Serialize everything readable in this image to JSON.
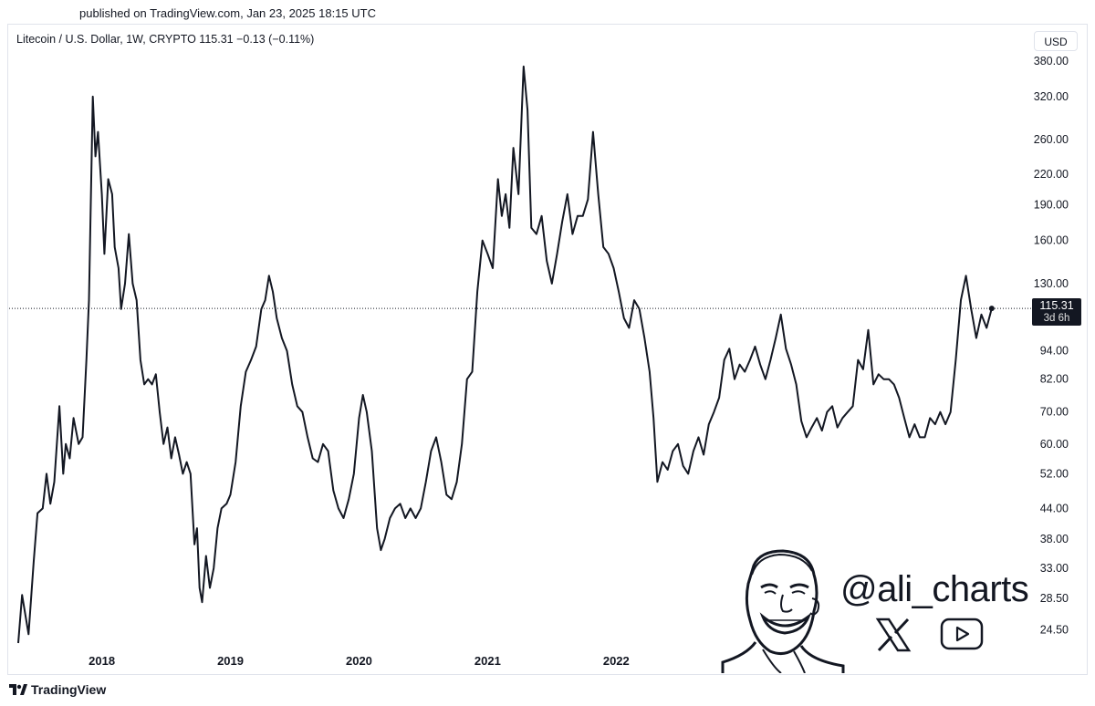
{
  "header": {
    "published": "published on TradingView.com, Jan 23, 2025 18:15 UTC"
  },
  "legend": {
    "symbol": "Litecoin / U.S. Dollar, 1W, CRYPTO  115.31  −0.13 (−0.11%)"
  },
  "currency_button": "USD",
  "last_price": {
    "value": "115.31",
    "countdown": "3d 6h"
  },
  "watermark": {
    "handle": "@ali_charts",
    "icons": [
      "x-logo-icon",
      "youtube-icon"
    ]
  },
  "footer": {
    "brand": "TradingView"
  },
  "colors": {
    "line": "#131722",
    "grid_dotted": "#131722",
    "badge_bg": "#131722"
  },
  "chart_data": {
    "type": "line",
    "title": "Litecoin / U.S. Dollar, 1W, CRYPTO",
    "y_scale": "log",
    "ylim": [
      22.5,
      395
    ],
    "xlim": [
      2017.35,
      2025.12
    ],
    "y_ticks": [
      24.5,
      28.5,
      33.0,
      38.0,
      44.0,
      52.0,
      60.0,
      70.0,
      82.0,
      94.0,
      130.0,
      160.0,
      190.0,
      220.0,
      260.0,
      320.0,
      380.0
    ],
    "y_tick_labels": [
      "24.50",
      "28.50",
      "33.00",
      "38.00",
      "44.00",
      "52.00",
      "60.00",
      "70.00",
      "82.00",
      "94.00",
      "130.00",
      "160.00",
      "190.00",
      "220.00",
      "260.00",
      "320.00",
      "380.00"
    ],
    "x_ticks": [
      2018,
      2019,
      2020,
      2021,
      2022
    ],
    "x_tick_labels": [
      "2018",
      "2019",
      "2020",
      "2021",
      "2022"
    ],
    "current_price_line": 115.31,
    "series": [
      {
        "points": [
          [
            2017.35,
            23.0
          ],
          [
            2017.38,
            29.0
          ],
          [
            2017.43,
            24.0
          ],
          [
            2017.47,
            34.0
          ],
          [
            2017.5,
            43.0
          ],
          [
            2017.54,
            44.0
          ],
          [
            2017.57,
            52.0
          ],
          [
            2017.6,
            45.0
          ],
          [
            2017.63,
            50.0
          ],
          [
            2017.67,
            72.0
          ],
          [
            2017.7,
            52.0
          ],
          [
            2017.72,
            60.0
          ],
          [
            2017.75,
            56.0
          ],
          [
            2017.78,
            68.0
          ],
          [
            2017.82,
            60.0
          ],
          [
            2017.85,
            62.0
          ],
          [
            2017.88,
            90.0
          ],
          [
            2017.9,
            120.0
          ],
          [
            2017.93,
            320.0
          ],
          [
            2017.95,
            240.0
          ],
          [
            2017.97,
            270.0
          ],
          [
            2018.0,
            200.0
          ],
          [
            2018.02,
            150.0
          ],
          [
            2018.05,
            215.0
          ],
          [
            2018.08,
            200.0
          ],
          [
            2018.1,
            155.0
          ],
          [
            2018.13,
            140.0
          ],
          [
            2018.15,
            115.0
          ],
          [
            2018.18,
            130.0
          ],
          [
            2018.21,
            165.0
          ],
          [
            2018.24,
            130.0
          ],
          [
            2018.27,
            120.0
          ],
          [
            2018.3,
            90.0
          ],
          [
            2018.33,
            80.0
          ],
          [
            2018.36,
            82.0
          ],
          [
            2018.39,
            80.0
          ],
          [
            2018.42,
            84.0
          ],
          [
            2018.45,
            70.0
          ],
          [
            2018.48,
            60.0
          ],
          [
            2018.51,
            65.0
          ],
          [
            2018.54,
            56.0
          ],
          [
            2018.57,
            62.0
          ],
          [
            2018.6,
            57.0
          ],
          [
            2018.63,
            52.0
          ],
          [
            2018.66,
            55.0
          ],
          [
            2018.69,
            52.0
          ],
          [
            2018.72,
            37.0
          ],
          [
            2018.74,
            40.0
          ],
          [
            2018.76,
            30.0
          ],
          [
            2018.78,
            28.0
          ],
          [
            2018.81,
            35.0
          ],
          [
            2018.84,
            30.0
          ],
          [
            2018.87,
            33.0
          ],
          [
            2018.9,
            40.0
          ],
          [
            2018.93,
            44.0
          ],
          [
            2018.97,
            45.0
          ],
          [
            2019.0,
            47.0
          ],
          [
            2019.04,
            55.0
          ],
          [
            2019.08,
            72.0
          ],
          [
            2019.12,
            85.0
          ],
          [
            2019.16,
            90.0
          ],
          [
            2019.2,
            96.0
          ],
          [
            2019.24,
            115.0
          ],
          [
            2019.27,
            120.0
          ],
          [
            2019.3,
            135.0
          ],
          [
            2019.33,
            125.0
          ],
          [
            2019.36,
            110.0
          ],
          [
            2019.4,
            100.0
          ],
          [
            2019.44,
            94.0
          ],
          [
            2019.48,
            80.0
          ],
          [
            2019.52,
            72.0
          ],
          [
            2019.56,
            70.0
          ],
          [
            2019.6,
            62.0
          ],
          [
            2019.64,
            56.0
          ],
          [
            2019.68,
            55.0
          ],
          [
            2019.72,
            60.0
          ],
          [
            2019.76,
            58.0
          ],
          [
            2019.8,
            48.0
          ],
          [
            2019.84,
            44.0
          ],
          [
            2019.88,
            42.0
          ],
          [
            2019.92,
            46.0
          ],
          [
            2019.96,
            52.0
          ],
          [
            2020.0,
            68.0
          ],
          [
            2020.03,
            76.0
          ],
          [
            2020.06,
            70.0
          ],
          [
            2020.1,
            58.0
          ],
          [
            2020.14,
            40.0
          ],
          [
            2020.17,
            36.0
          ],
          [
            2020.2,
            38.0
          ],
          [
            2020.24,
            42.0
          ],
          [
            2020.28,
            44.0
          ],
          [
            2020.32,
            45.0
          ],
          [
            2020.36,
            42.0
          ],
          [
            2020.4,
            44.0
          ],
          [
            2020.44,
            42.0
          ],
          [
            2020.48,
            44.0
          ],
          [
            2020.52,
            50.0
          ],
          [
            2020.56,
            58.0
          ],
          [
            2020.6,
            62.0
          ],
          [
            2020.64,
            55.0
          ],
          [
            2020.68,
            47.0
          ],
          [
            2020.72,
            46.0
          ],
          [
            2020.76,
            50.0
          ],
          [
            2020.8,
            60.0
          ],
          [
            2020.84,
            82.0
          ],
          [
            2020.88,
            85.0
          ],
          [
            2020.92,
            125.0
          ],
          [
            2020.96,
            160.0
          ],
          [
            2021.0,
            150.0
          ],
          [
            2021.04,
            140.0
          ],
          [
            2021.08,
            215.0
          ],
          [
            2021.11,
            180.0
          ],
          [
            2021.14,
            200.0
          ],
          [
            2021.17,
            170.0
          ],
          [
            2021.2,
            250.0
          ],
          [
            2021.24,
            200.0
          ],
          [
            2021.28,
            370.0
          ],
          [
            2021.31,
            300.0
          ],
          [
            2021.34,
            170.0
          ],
          [
            2021.38,
            165.0
          ],
          [
            2021.42,
            180.0
          ],
          [
            2021.46,
            145.0
          ],
          [
            2021.5,
            130.0
          ],
          [
            2021.54,
            150.0
          ],
          [
            2021.58,
            175.0
          ],
          [
            2021.62,
            200.0
          ],
          [
            2021.66,
            165.0
          ],
          [
            2021.7,
            180.0
          ],
          [
            2021.74,
            180.0
          ],
          [
            2021.78,
            195.0
          ],
          [
            2021.82,
            270.0
          ],
          [
            2021.86,
            200.0
          ],
          [
            2021.9,
            155.0
          ],
          [
            2021.94,
            150.0
          ],
          [
            2021.98,
            140.0
          ],
          [
            2022.02,
            125.0
          ],
          [
            2022.06,
            110.0
          ],
          [
            2022.1,
            105.0
          ],
          [
            2022.14,
            120.0
          ],
          [
            2022.18,
            115.0
          ],
          [
            2022.22,
            100.0
          ],
          [
            2022.26,
            85.0
          ],
          [
            2022.29,
            68.0
          ],
          [
            2022.32,
            50.0
          ],
          [
            2022.36,
            55.0
          ],
          [
            2022.4,
            53.0
          ],
          [
            2022.44,
            58.0
          ],
          [
            2022.48,
            60.0
          ],
          [
            2022.52,
            54.0
          ],
          [
            2022.56,
            52.0
          ],
          [
            2022.6,
            58.0
          ],
          [
            2022.64,
            62.0
          ],
          [
            2022.68,
            57.0
          ],
          [
            2022.72,
            66.0
          ],
          [
            2022.76,
            70.0
          ],
          [
            2022.8,
            75.0
          ],
          [
            2022.84,
            90.0
          ],
          [
            2022.88,
            95.0
          ],
          [
            2022.92,
            82.0
          ],
          [
            2022.96,
            88.0
          ],
          [
            2023.0,
            85.0
          ],
          [
            2023.04,
            90.0
          ],
          [
            2023.08,
            96.0
          ],
          [
            2023.12,
            88.0
          ],
          [
            2023.16,
            82.0
          ],
          [
            2023.2,
            90.0
          ],
          [
            2023.24,
            100.0
          ],
          [
            2023.28,
            112.0
          ],
          [
            2023.32,
            95.0
          ],
          [
            2023.36,
            88.0
          ],
          [
            2023.4,
            80.0
          ],
          [
            2023.44,
            67.0
          ],
          [
            2023.48,
            62.0
          ],
          [
            2023.52,
            65.0
          ],
          [
            2023.56,
            68.0
          ],
          [
            2023.6,
            64.0
          ],
          [
            2023.64,
            70.0
          ],
          [
            2023.68,
            72.0
          ],
          [
            2023.72,
            65.0
          ],
          [
            2023.76,
            68.0
          ],
          [
            2023.8,
            70.0
          ],
          [
            2023.84,
            72.0
          ],
          [
            2023.88,
            90.0
          ],
          [
            2023.92,
            86.0
          ],
          [
            2023.96,
            104.0
          ],
          [
            2024.0,
            80.0
          ],
          [
            2024.04,
            84.0
          ],
          [
            2024.08,
            82.0
          ],
          [
            2024.12,
            82.0
          ],
          [
            2024.16,
            80.0
          ],
          [
            2024.2,
            75.0
          ],
          [
            2024.24,
            68.0
          ],
          [
            2024.28,
            62.0
          ],
          [
            2024.32,
            66.0
          ],
          [
            2024.36,
            62.0
          ],
          [
            2024.4,
            62.0
          ],
          [
            2024.44,
            68.0
          ],
          [
            2024.48,
            66.0
          ],
          [
            2024.52,
            70.0
          ],
          [
            2024.56,
            66.0
          ],
          [
            2024.6,
            70.0
          ],
          [
            2024.64,
            90.0
          ],
          [
            2024.68,
            120.0
          ],
          [
            2024.72,
            135.0
          ],
          [
            2024.76,
            115.0
          ],
          [
            2024.8,
            100.0
          ],
          [
            2024.84,
            112.0
          ],
          [
            2024.88,
            105.0
          ],
          [
            2024.92,
            115.31
          ]
        ]
      }
    ]
  }
}
